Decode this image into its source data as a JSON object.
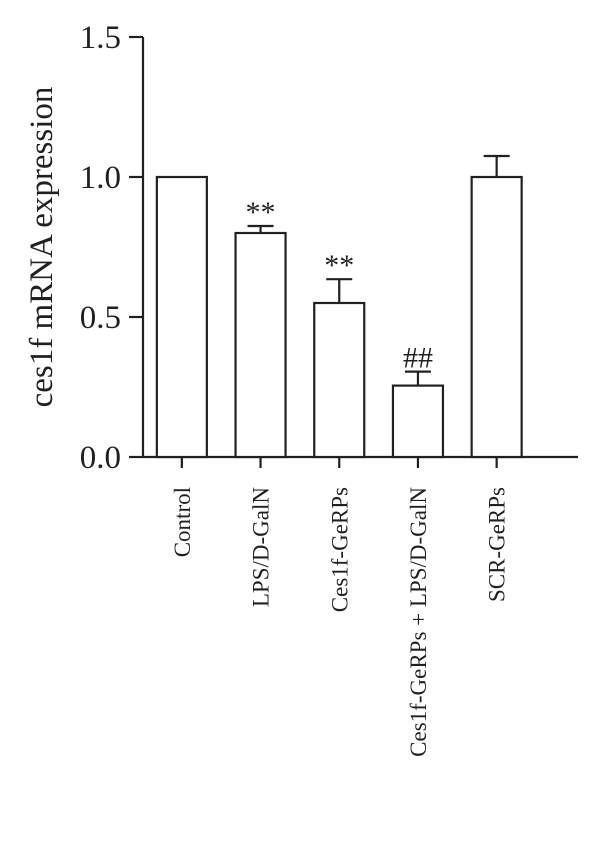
{
  "chart_data": {
    "type": "bar",
    "title": "",
    "xlabel": "",
    "ylabel": "ces1f mRNA expression",
    "ylim": [
      0,
      1.5
    ],
    "yticks": [
      "0.0",
      "0.5",
      "1.0",
      "1.5"
    ],
    "categories": [
      "Control",
      "LPS/D-GalN",
      "Ces1f-GeRPs",
      "Ces1f-GeRPs + LPS/D-GalN",
      "SCR-GeRPs"
    ],
    "values": [
      1.0,
      0.8,
      0.55,
      0.255,
      1.0
    ],
    "errors": [
      0,
      0.025,
      0.085,
      0.05,
      0.075
    ],
    "annotations": [
      "",
      "**",
      "**",
      "##",
      ""
    ],
    "bar_fill": "#ffffff",
    "stroke_color": "#231f20",
    "grid": false,
    "legend": "none"
  }
}
